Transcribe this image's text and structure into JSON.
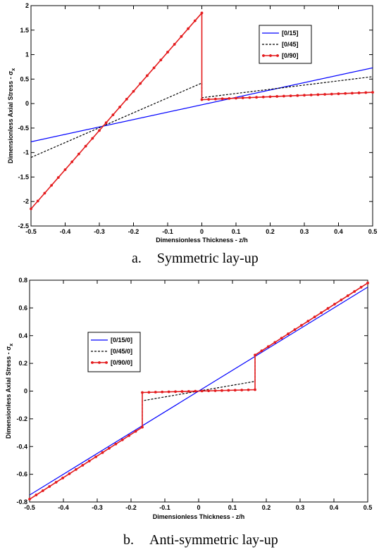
{
  "chart_data": [
    {
      "type": "line",
      "xlabel": "Dimensionless Thickness - z/h",
      "ylabel": "Dimensionless Axial Stress - σ",
      "ylabel_subscript": "x",
      "xlim": [
        -0.5,
        0.5
      ],
      "ylim": [
        -2.5,
        2
      ],
      "xticks": [
        "-0.5",
        "-0.4",
        "-0.3",
        "-0.2",
        "-0.1",
        "0",
        "0.1",
        "0.2",
        "0.3",
        "0.4",
        "0.5"
      ],
      "yticks": [
        "-2.5",
        "-2",
        "-1.5",
        "-1",
        "-0.5",
        "0",
        "0.5",
        "1",
        "1.5",
        "2"
      ],
      "legend_position": "top-right",
      "grid": false,
      "caption_letter": "a.",
      "caption_text": "Symmetric lay-up",
      "series": [
        {
          "name": "[0/15]",
          "color": "#0000ff",
          "style": "solid",
          "markers": false,
          "x": [
            -0.5,
            0.5
          ],
          "y": [
            -0.78,
            0.73
          ]
        },
        {
          "name": "[0/45]",
          "color": "#000000",
          "style": "dashed",
          "markers": false,
          "x": [
            -0.5,
            0,
            0,
            0.5
          ],
          "y": [
            -1.1,
            0.42,
            0.12,
            0.55
          ]
        },
        {
          "name": "[0/90]",
          "color": "#e41a1c",
          "style": "solid",
          "markers": true,
          "x": [
            -0.5,
            0,
            0,
            0.5
          ],
          "y": [
            -2.15,
            1.85,
            0.08,
            0.23
          ]
        }
      ]
    },
    {
      "type": "line",
      "xlabel": "Dimensionless Thickness - z/h",
      "ylabel": "Dimensionless Axial Stress - σ",
      "ylabel_subscript": "x",
      "xlim": [
        -0.5,
        0.5
      ],
      "ylim": [
        -0.8,
        0.8
      ],
      "xticks": [
        "-0.5",
        "-0.4",
        "-0.3",
        "-0.2",
        "-0.1",
        "0",
        "0.1",
        "0.2",
        "0.3",
        "0.4",
        "0.5"
      ],
      "yticks": [
        "-0.8",
        "-0.6",
        "-0.4",
        "-0.2",
        "0",
        "0.2",
        "0.4",
        "0.6",
        "0.8"
      ],
      "legend_position": "center-left",
      "grid": false,
      "caption_letter": "b.",
      "caption_text": "Anti-symmetric lay-up",
      "series": [
        {
          "name": "[0/15/0]",
          "color": "#0000ff",
          "style": "solid",
          "markers": false,
          "x": [
            -0.5,
            0.5
          ],
          "y": [
            -0.75,
            0.75
          ]
        },
        {
          "name": "[0/45/0]",
          "color": "#000000",
          "style": "dashed",
          "markers": false,
          "x": [
            -0.5,
            -0.1667,
            -0.1667,
            0.1667,
            0.1667,
            0.5
          ],
          "y": [
            -0.78,
            -0.26,
            -0.07,
            0.07,
            0.26,
            0.78
          ]
        },
        {
          "name": "[0/90/0]",
          "color": "#e41a1c",
          "style": "solid",
          "markers": true,
          "x": [
            -0.5,
            -0.1667,
            -0.1667,
            0.1667,
            0.1667,
            0.5
          ],
          "y": [
            -0.78,
            -0.26,
            -0.01,
            0.01,
            0.26,
            0.78
          ]
        }
      ]
    }
  ]
}
